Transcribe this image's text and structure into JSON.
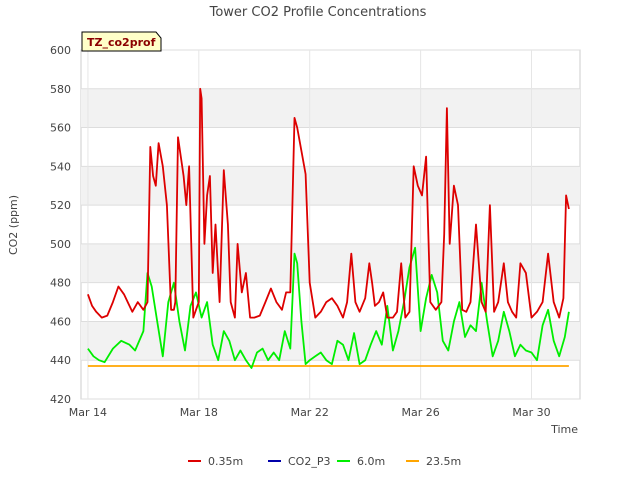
{
  "chart_data": {
    "type": "line",
    "title": "Tower CO2 Profile Concentrations",
    "badge": "TZ_co2prof",
    "xlabel": "Time",
    "ylabel": "CO2 (ppm)",
    "xlim": [
      13.75,
      31.75
    ],
    "ylim": [
      420,
      600
    ],
    "y_ticks": [
      420,
      440,
      460,
      480,
      500,
      520,
      540,
      560,
      580,
      600
    ],
    "x_ticks": [
      {
        "value": 14,
        "label": "Mar 14"
      },
      {
        "value": 18,
        "label": "Mar 18"
      },
      {
        "value": 22,
        "label": "Mar 22"
      },
      {
        "value": 26,
        "label": "Mar 26"
      },
      {
        "value": 30,
        "label": "Mar 30"
      }
    ],
    "grid": true,
    "legend_position": "bottom",
    "series": [
      {
        "name": "0.35m",
        "color": "#dd0000",
        "x": [
          14.0,
          14.15,
          14.3,
          14.5,
          14.7,
          14.9,
          15.1,
          15.3,
          15.5,
          15.6,
          15.8,
          16.0,
          16.15,
          16.25,
          16.35,
          16.45,
          16.55,
          16.7,
          16.85,
          17.0,
          17.1,
          17.15,
          17.25,
          17.35,
          17.45,
          17.55,
          17.65,
          17.8,
          17.9,
          18.0,
          18.05,
          18.1,
          18.2,
          18.3,
          18.4,
          18.5,
          18.6,
          18.75,
          18.9,
          19.05,
          19.15,
          19.3,
          19.4,
          19.55,
          19.7,
          19.85,
          20.0,
          20.2,
          20.4,
          20.6,
          20.8,
          21.0,
          21.15,
          21.3,
          21.45,
          21.55,
          21.7,
          21.85,
          22.0,
          22.2,
          22.4,
          22.6,
          22.8,
          23.0,
          23.2,
          23.35,
          23.5,
          23.65,
          23.8,
          24.0,
          24.15,
          24.25,
          24.35,
          24.5,
          24.65,
          24.8,
          25.0,
          25.15,
          25.3,
          25.45,
          25.6,
          25.75,
          25.9,
          26.05,
          26.2,
          26.35,
          26.55,
          26.75,
          26.85,
          26.95,
          27.05,
          27.2,
          27.35,
          27.5,
          27.65,
          27.8,
          28.0,
          28.2,
          28.35,
          28.5,
          28.65,
          28.8,
          29.0,
          29.15,
          29.3,
          29.45,
          29.6,
          29.8,
          30.0,
          30.2,
          30.4,
          30.6,
          30.8,
          31.0,
          31.15,
          31.25,
          31.35
        ],
        "y": [
          474,
          468,
          465,
          462,
          463,
          470,
          478,
          474,
          468,
          465,
          470,
          466,
          470,
          550,
          535,
          530,
          552,
          540,
          520,
          466,
          466,
          470,
          555,
          545,
          535,
          520,
          540,
          462,
          466,
          470,
          580,
          575,
          500,
          525,
          535,
          485,
          510,
          470,
          538,
          510,
          470,
          462,
          500,
          475,
          485,
          462,
          462,
          463,
          470,
          477,
          470,
          466,
          475,
          475,
          565,
          560,
          548,
          536,
          480,
          462,
          465,
          470,
          472,
          468,
          462,
          470,
          495,
          470,
          465,
          472,
          490,
          480,
          468,
          470,
          475,
          462,
          462,
          465,
          490,
          462,
          465,
          540,
          530,
          525,
          545,
          470,
          466,
          470,
          505,
          570,
          500,
          530,
          520,
          466,
          465,
          470,
          510,
          470,
          465,
          520,
          465,
          470,
          490,
          470,
          465,
          462,
          490,
          485,
          462,
          465,
          470,
          495,
          470,
          462,
          472,
          525,
          518
        ]
      },
      {
        "name": "CO2_P3",
        "color": "#0000aa",
        "x": [],
        "y": []
      },
      {
        "name": "6.0m",
        "color": "#00ee00",
        "x": [
          14.0,
          14.2,
          14.4,
          14.6,
          14.9,
          15.2,
          15.5,
          15.7,
          16.0,
          16.15,
          16.3,
          16.5,
          16.7,
          16.9,
          17.1,
          17.3,
          17.5,
          17.7,
          17.9,
          18.1,
          18.3,
          18.5,
          18.7,
          18.9,
          19.1,
          19.3,
          19.5,
          19.7,
          19.9,
          20.1,
          20.3,
          20.5,
          20.7,
          20.9,
          21.1,
          21.3,
          21.45,
          21.55,
          21.7,
          21.85,
          22.0,
          22.2,
          22.4,
          22.6,
          22.8,
          23.0,
          23.2,
          23.4,
          23.6,
          23.8,
          24.0,
          24.2,
          24.4,
          24.6,
          24.8,
          25.0,
          25.2,
          25.4,
          25.6,
          25.8,
          26.0,
          26.2,
          26.4,
          26.6,
          26.8,
          27.0,
          27.2,
          27.4,
          27.6,
          27.8,
          28.0,
          28.2,
          28.4,
          28.6,
          28.8,
          29.0,
          29.2,
          29.4,
          29.6,
          29.8,
          30.0,
          30.2,
          30.4,
          30.6,
          30.8,
          31.0,
          31.2,
          31.35
        ],
        "y": [
          446,
          442,
          440,
          439,
          446,
          450,
          448,
          445,
          455,
          485,
          478,
          460,
          442,
          470,
          480,
          460,
          445,
          468,
          475,
          462,
          470,
          448,
          440,
          455,
          450,
          440,
          445,
          440,
          436,
          444,
          446,
          440,
          444,
          440,
          455,
          446,
          495,
          490,
          460,
          438,
          440,
          442,
          444,
          440,
          438,
          450,
          448,
          440,
          454,
          438,
          440,
          448,
          455,
          448,
          468,
          445,
          455,
          470,
          488,
          498,
          455,
          472,
          484,
          475,
          450,
          445,
          460,
          470,
          452,
          458,
          455,
          480,
          460,
          442,
          450,
          465,
          455,
          442,
          448,
          445,
          444,
          440,
          458,
          466,
          450,
          442,
          452,
          465
        ]
      },
      {
        "name": "23.5m",
        "color": "#ffa500",
        "x": [
          14.0,
          31.35
        ],
        "y": [
          437,
          437
        ]
      }
    ]
  }
}
